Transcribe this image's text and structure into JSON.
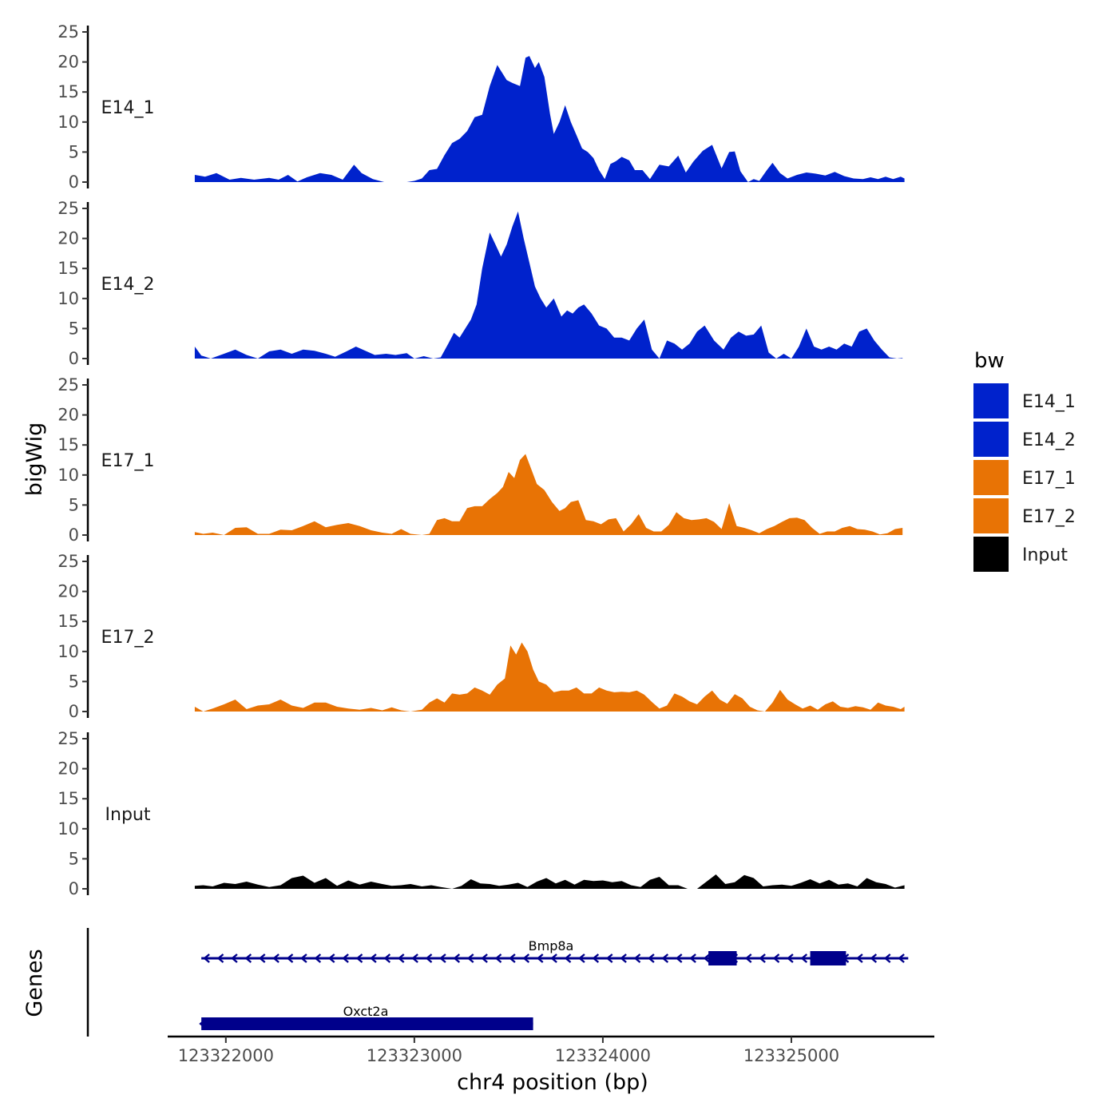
{
  "chart_data": {
    "type": "area",
    "title": "",
    "xlabel": "chr4 position (bp)",
    "ylabel": "bigWig",
    "gene_track_label": "Genes",
    "xlim": [
      123321700,
      123325750
    ],
    "x_ticks": [
      123322000,
      123323000,
      123324000,
      123325000
    ],
    "x_tick_labels": [
      "123322000",
      "123323000",
      "123324000",
      "123325000"
    ],
    "ylim": [
      0,
      25
    ],
    "y_ticks": [
      0,
      5,
      10,
      15,
      20,
      25
    ],
    "y_tick_labels": [
      "0",
      "5",
      "10",
      "15",
      "20",
      "25"
    ],
    "legend": {
      "title": "bw",
      "position": "right",
      "entries": [
        {
          "label": "E14_1",
          "color": "#0022CC"
        },
        {
          "label": "E14_2",
          "color": "#0022CC"
        },
        {
          "label": "E17_1",
          "color": "#E87305"
        },
        {
          "label": "E17_2",
          "color": "#E87305"
        },
        {
          "label": "Input",
          "color": "#000000"
        }
      ]
    },
    "series": [
      {
        "name": "E14_1",
        "color": "#0022CC",
        "x": [
          123321835,
          123321890,
          123321950,
          123322020,
          123322080,
          123322150,
          123322230,
          123322280,
          123322330,
          123322380,
          123322430,
          123322500,
          123322560,
          123322620,
          123322680,
          123322720,
          123322780,
          123322840,
          123322900,
          123322960,
          123323000,
          123323040,
          123323080,
          123323120,
          123323160,
          123323200,
          123323240,
          123323280,
          123323320,
          123323360,
          123323400,
          123323440,
          123323460,
          123323490,
          123323520,
          123323560,
          123323590,
          123323610,
          123323640,
          123323660,
          123323690,
          123323720,
          123323740,
          123323770,
          123323800,
          123323830,
          123323860,
          123323890,
          123323920,
          123323950,
          123323980,
          123324010,
          123324040,
          123324070,
          123324100,
          123324140,
          123324170,
          123324210,
          123324250,
          123324300,
          123324350,
          123324400,
          123324440,
          123324480,
          123324530,
          123324580,
          123324630,
          123324670,
          123324700,
          123324730,
          123324770,
          123324800,
          123324830,
          123324870,
          123324900,
          123324940,
          123324980,
          123325030,
          123325080,
          123325130,
          123325180,
          123325230,
          123325280,
          123325330,
          123325380,
          123325420,
          123325460,
          123325500,
          123325540,
          123325580,
          123325600
        ],
        "values": [
          1.2,
          0.9,
          1.5,
          0.4,
          0.7,
          0.4,
          0.7,
          0.4,
          1.2,
          0.1,
          0.8,
          1.5,
          1.2,
          0.4,
          2.9,
          1.5,
          0.5,
          0,
          0,
          0,
          0.2,
          0.6,
          2,
          2.2,
          4.5,
          6.5,
          7.2,
          8.5,
          10.8,
          11.2,
          16,
          19.5,
          18.5,
          17,
          16.5,
          16,
          20.7,
          21,
          19,
          20,
          17.5,
          11.3,
          8,
          10,
          12.8,
          10,
          7.8,
          5.6,
          5,
          4,
          2,
          0.5,
          3,
          3.5,
          4.2,
          3.6,
          2,
          2,
          0.5,
          2.9,
          2.6,
          4.4,
          1.6,
          3.4,
          5.2,
          6.2,
          2.3,
          5,
          5.1,
          1.8,
          0,
          0.5,
          0.2,
          2,
          3.2,
          1.5,
          0.6,
          1.2,
          1.6,
          1.4,
          1.1,
          1.7,
          1,
          0.6,
          0.5,
          0.8,
          0.5,
          0.9,
          0.5,
          0.9,
          0.6
        ]
      },
      {
        "name": "E14_2",
        "color": "#0022CC",
        "x": [
          123321835,
          123321870,
          123321920,
          123321990,
          123322050,
          123322110,
          123322170,
          123322230,
          123322290,
          123322350,
          123322410,
          123322470,
          123322530,
          123322580,
          123322640,
          123322690,
          123322740,
          123322790,
          123322850,
          123322900,
          123322960,
          123323000,
          123323050,
          123323100,
          123323140,
          123323180,
          123323210,
          123323240,
          123323270,
          123323300,
          123323330,
          123323360,
          123323400,
          123323430,
          123323460,
          123323490,
          123323520,
          123323550,
          123323580,
          123323610,
          123323640,
          123323670,
          123323700,
          123323740,
          123323780,
          123323810,
          123323840,
          123323870,
          123323900,
          123323940,
          123323980,
          123324020,
          123324060,
          123324100,
          123324140,
          123324180,
          123324220,
          123324260,
          123324300,
          123324340,
          123324380,
          123324420,
          123324460,
          123324500,
          123324540,
          123324590,
          123324640,
          123324680,
          123324720,
          123324760,
          123324800,
          123324840,
          123324880,
          123324920,
          123324960,
          123325000,
          123325040,
          123325080,
          123325120,
          123325160,
          123325200,
          123325240,
          123325280,
          123325320,
          123325360,
          123325400,
          123325440,
          123325480,
          123325520,
          123325560,
          123325590
        ],
        "values": [
          2,
          0.5,
          0,
          0.8,
          1.5,
          0.6,
          0,
          1.2,
          1.5,
          0.8,
          1.5,
          1.3,
          0.8,
          0.3,
          1.2,
          2,
          1.3,
          0.6,
          0.8,
          0.6,
          0.9,
          0,
          0.4,
          0,
          0.2,
          2.5,
          4.3,
          3.5,
          5,
          6.5,
          9,
          15,
          21,
          19,
          17,
          19,
          22,
          24.5,
          20,
          16,
          12,
          10,
          8.5,
          10,
          7,
          8,
          7.5,
          8.5,
          9,
          7.5,
          5.5,
          5,
          3.5,
          3.5,
          3,
          5,
          6.5,
          1.5,
          0,
          3,
          2.5,
          1.5,
          2.5,
          4.5,
          5.5,
          3,
          1.5,
          3.5,
          4.5,
          3.8,
          4,
          5.5,
          1,
          0,
          0.8,
          0,
          2,
          5,
          2,
          1.5,
          2,
          1.5,
          2.5,
          2,
          4.5,
          5,
          3,
          1.5,
          0.2,
          0,
          0.1
        ]
      },
      {
        "name": "E17_1",
        "color": "#E87305",
        "x": [
          123321835,
          123321880,
          123321930,
          123321990,
          123322050,
          123322110,
          123322170,
          123322230,
          123322290,
          123322350,
          123322410,
          123322470,
          123322530,
          123322590,
          123322650,
          123322710,
          123322770,
          123322830,
          123322880,
          123322930,
          123322980,
          123323040,
          123323080,
          123323120,
          123323160,
          123323200,
          123323240,
          123323280,
          123323320,
          123323360,
          123323400,
          123323440,
          123323470,
          123323500,
          123323530,
          123323560,
          123323590,
          123323620,
          123323650,
          123323690,
          123323730,
          123323770,
          123323800,
          123323830,
          123323870,
          123323910,
          123323950,
          123323990,
          123324030,
          123324070,
          123324110,
          123324150,
          123324190,
          123324230,
          123324270,
          123324310,
          123324350,
          123324390,
          123324430,
          123324470,
          123324510,
          123324550,
          123324590,
          123324630,
          123324670,
          123324710,
          123324750,
          123324790,
          123324830,
          123324870,
          123324910,
          123324950,
          123324990,
          123325030,
          123325070,
          123325110,
          123325150,
          123325190,
          123325230,
          123325270,
          123325310,
          123325350,
          123325390,
          123325430,
          123325470,
          123325510,
          123325550,
          123325590
        ],
        "values": [
          0.5,
          0.2,
          0.4,
          0,
          1.2,
          1.3,
          0.2,
          0.2,
          0.9,
          0.8,
          1.5,
          2.3,
          1.3,
          1.7,
          2,
          1.5,
          0.8,
          0.4,
          0.2,
          1,
          0.2,
          0,
          0.2,
          2.5,
          2.8,
          2.3,
          2.3,
          4.5,
          4.8,
          4.8,
          6,
          7,
          8,
          10.5,
          9.5,
          12.5,
          13.5,
          11,
          8.5,
          7.5,
          5.5,
          4,
          4.5,
          5.5,
          5.8,
          2.5,
          2.3,
          1.8,
          2.6,
          2.8,
          0.6,
          1.8,
          3.5,
          1.2,
          0.6,
          0.6,
          1.7,
          3.8,
          2.8,
          2.5,
          2.6,
          2.8,
          2.2,
          1,
          5.3,
          1.5,
          1.2,
          0.8,
          0.3,
          1,
          1.5,
          2.2,
          2.8,
          2.9,
          2.5,
          1.2,
          0.2,
          0.6,
          0.6,
          1.2,
          1.5,
          1,
          0.9,
          0.6,
          0.1,
          0.3,
          1,
          1.2
        ]
      },
      {
        "name": "E17_2",
        "color": "#E87305",
        "x": [
          123321835,
          123321880,
          123321930,
          123321990,
          123322050,
          123322110,
          123322170,
          123322230,
          123322290,
          123322350,
          123322410,
          123322470,
          123322530,
          123322590,
          123322650,
          123322710,
          123322770,
          123322830,
          123322880,
          123322930,
          123322980,
          123323040,
          123323080,
          123323120,
          123323160,
          123323200,
          123323240,
          123323280,
          123323320,
          123323360,
          123323400,
          123323440,
          123323480,
          123323510,
          123323540,
          123323570,
          123323600,
          123323630,
          123323660,
          123323700,
          123323740,
          123323780,
          123323820,
          123323860,
          123323900,
          123323940,
          123323980,
          123324020,
          123324060,
          123324100,
          123324140,
          123324180,
          123324220,
          123324260,
          123324300,
          123324340,
          123324380,
          123324420,
          123324460,
          123324500,
          123324540,
          123324580,
          123324620,
          123324660,
          123324700,
          123324740,
          123324780,
          123324820,
          123324860,
          123324900,
          123324940,
          123324980,
          123325020,
          123325060,
          123325100,
          123325140,
          123325180,
          123325220,
          123325260,
          123325300,
          123325340,
          123325380,
          123325420,
          123325460,
          123325500,
          123325540,
          123325580,
          123325600
        ],
        "values": [
          0.8,
          0,
          0.5,
          1.2,
          2,
          0.4,
          1,
          1.2,
          2,
          1,
          0.6,
          1.5,
          1.5,
          0.8,
          0.5,
          0.3,
          0.6,
          0.2,
          0.7,
          0.2,
          0,
          0.3,
          1.5,
          2.2,
          1.5,
          3,
          2.8,
          3,
          4,
          3.5,
          2.8,
          4.5,
          5.5,
          11,
          9.5,
          11.5,
          10,
          7,
          5,
          4.5,
          3.2,
          3.5,
          3.5,
          4,
          3,
          3,
          4,
          3.5,
          3.2,
          3.3,
          3.2,
          3.5,
          2.8,
          1.6,
          0.5,
          1,
          3,
          2.5,
          1.7,
          1.2,
          2.5,
          3.5,
          2,
          1.3,
          2.9,
          2.2,
          0.8,
          0.2,
          0,
          1.5,
          3.6,
          2,
          1.2,
          0.5,
          1,
          0.3,
          1.2,
          1.7,
          0.8,
          0.6,
          0.9,
          0.7,
          0.3,
          1.5,
          1,
          0.8,
          0.4,
          0.8
        ]
      },
      {
        "name": "Input",
        "color": "#000000",
        "x": [
          123321835,
          123321880,
          123321930,
          123321990,
          123322050,
          123322110,
          123322170,
          123322230,
          123322290,
          123322350,
          123322410,
          123322470,
          123322530,
          123322590,
          123322650,
          123322710,
          123322770,
          123322830,
          123322880,
          123322930,
          123322980,
          123323040,
          123323090,
          123323140,
          123323200,
          123323250,
          123323300,
          123323350,
          123323400,
          123323450,
          123323500,
          123323550,
          123323600,
          123323650,
          123323700,
          123323750,
          123323800,
          123323850,
          123323900,
          123323950,
          123324000,
          123324050,
          123324100,
          123324150,
          123324200,
          123324250,
          123324300,
          123324350,
          123324400,
          123324450,
          123324500,
          123324550,
          123324600,
          123324650,
          123324700,
          123324750,
          123324800,
          123324850,
          123324900,
          123324950,
          123325000,
          123325050,
          123325100,
          123325150,
          123325200,
          123325250,
          123325300,
          123325350,
          123325400,
          123325450,
          123325500,
          123325550,
          123325600
        ],
        "values": [
          0.5,
          0.6,
          0.4,
          1,
          0.8,
          1.2,
          0.7,
          0.3,
          0.6,
          1.8,
          2.2,
          1,
          1.8,
          0.5,
          1.4,
          0.7,
          1.2,
          0.8,
          0.5,
          0.6,
          0.8,
          0.4,
          0.6,
          0.3,
          0,
          0.5,
          1.6,
          0.9,
          0.8,
          0.5,
          0.7,
          1,
          0.3,
          1.2,
          1.8,
          0.9,
          1.5,
          0.7,
          1.5,
          1.3,
          1.4,
          1.1,
          1.3,
          0.6,
          0.3,
          1.5,
          2,
          0.6,
          0.6,
          0,
          0,
          1.2,
          2.4,
          0.8,
          1.1,
          2.3,
          1.8,
          0.4,
          0.6,
          0.7,
          0.5,
          1,
          1.6,
          0.9,
          1.5,
          0.7,
          0.9,
          0.4,
          1.8,
          1.1,
          0.8,
          0.2,
          0.6
        ]
      }
    ],
    "genes": [
      {
        "name": "Bmp8a",
        "start": 123321870,
        "end": 123325620,
        "strand": "-",
        "row": 1,
        "color": "#00008B",
        "exons": [
          [
            123324560,
            123324710
          ],
          [
            123325100,
            123325290
          ]
        ]
      },
      {
        "name": "Oxct2a",
        "start": 123321870,
        "end": 123323630,
        "strand": "-",
        "row": 2,
        "color": "#00008B",
        "exons": [
          [
            123321870,
            123323630
          ]
        ]
      }
    ]
  }
}
